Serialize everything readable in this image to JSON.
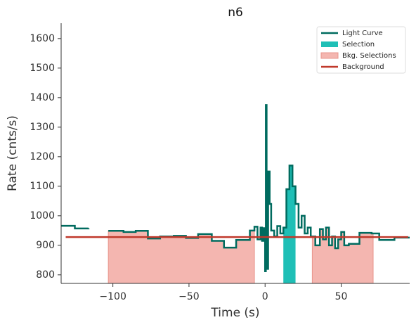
{
  "chart_data": {
    "type": "line",
    "title": "n6",
    "x_label": "Time (s)",
    "y_label": "Rate (cnts/s)",
    "xlim": [
      -134,
      95
    ],
    "ylim": [
      771,
      1652
    ],
    "xticks": [
      {
        "value": -100,
        "label": "−100"
      },
      {
        "value": -50,
        "label": "−50"
      },
      0,
      50
    ],
    "yticks": [
      800,
      900,
      1000,
      1100,
      1200,
      1300,
      1400,
      1500,
      1600
    ],
    "legend": "upper right",
    "series": [
      {
        "name": "Light Curve",
        "color": "#006b5f",
        "x": [
          -134,
          -125,
          -116,
          -110,
          -103,
          -93,
          -85,
          -77,
          -69,
          -60,
          -52,
          -44,
          -35,
          -27,
          -19,
          -10,
          -7,
          -5,
          -3,
          -2,
          -1,
          0,
          0.5,
          1,
          2,
          3,
          4,
          6,
          8,
          10,
          12,
          14,
          16,
          18,
          20,
          22,
          24,
          26,
          28,
          30,
          33,
          36,
          38,
          40,
          42,
          44,
          46,
          48,
          50,
          52,
          55,
          62,
          70,
          75,
          85,
          95
        ],
        "values": [
          966,
          957,
          958,
          null,
          949,
          945,
          949,
          923,
          930,
          932,
          925,
          938,
          915,
          892,
          918,
          950,
          963,
          920,
          960,
          915,
          958,
          812,
          1375,
          820,
          1150,
          1040,
          950,
          930,
          965,
          940,
          960,
          1090,
          1170,
          1100,
          1040,
          960,
          1000,
          940,
          960,
          930,
          900,
          955,
          920,
          960,
          900,
          930,
          890,
          920,
          945,
          900,
          905,
          942,
          940,
          918,
          926,
          926
        ]
      },
      {
        "name": "Selection",
        "color": "#1fbfb6",
        "spans": [
          [
            12,
            20
          ]
        ]
      },
      {
        "name": "Bkg. Selections",
        "color": "#f4b6b0",
        "spans": [
          [
            -110,
            -7
          ],
          [
            31,
            71
          ]
        ]
      },
      {
        "name": "Background",
        "color": "#c0392b",
        "x": [
          -131,
          94
        ],
        "values": [
          928,
          928
        ]
      }
    ]
  }
}
